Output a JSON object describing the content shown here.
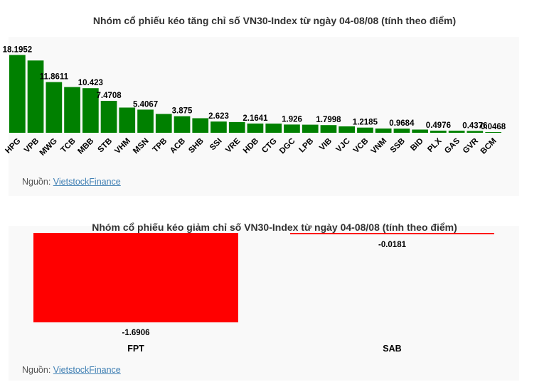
{
  "charts": [
    {
      "title": "Nhóm cổ phiếu kéo tăng chỉ số VN30-Index từ ngày 04-08/08 (tính theo điểm)",
      "source_label": "Nguồn:",
      "source_link": "VietstockFinance"
    },
    {
      "title": "Nhóm cổ phiếu kéo giảm chỉ số VN30-Index từ ngày 04-08/08 (tính theo điểm)",
      "source_label": "Nguồn:",
      "source_link": "VietstockFinance"
    }
  ],
  "colors": {
    "positive": "#008000",
    "negative": "#ff0000"
  },
  "chart_data": [
    {
      "type": "bar",
      "title": "Nhóm cổ phiếu kéo tăng chỉ số VN30-Index từ ngày 04-08/08 (tính theo điểm)",
      "categories": [
        "HPG",
        "VPB",
        "MWG",
        "TCB",
        "MBB",
        "STB",
        "VHM",
        "MSN",
        "TPB",
        "ACB",
        "SHB",
        "SSI",
        "VRE",
        "HDB",
        "CTG",
        "DGC",
        "LPB",
        "VIB",
        "VJC",
        "VCB",
        "VNM",
        "SSB",
        "BID",
        "PLX",
        "GAS",
        "GVR",
        "BCM"
      ],
      "values": [
        18.1952,
        16.9,
        11.8611,
        10.7,
        10.423,
        7.4708,
        5.9,
        5.4067,
        4.4,
        3.875,
        3.4,
        2.623,
        2.5,
        2.1641,
        2.15,
        1.926,
        1.9,
        1.7998,
        1.5,
        1.2185,
        1.0,
        0.9684,
        0.75,
        0.4976,
        0.48,
        0.4376,
        0.0468
      ],
      "data_labels": [
        "18.1952",
        "",
        "11.8611",
        "",
        "10.423",
        "7.4708",
        "",
        "5.4067",
        "",
        "3.875",
        "",
        "2.623",
        "",
        "2.1641",
        "",
        "1.926",
        "",
        "1.7998",
        "",
        "1.2185",
        "",
        "0.9684",
        "",
        "0.4976",
        "",
        "0.4376",
        "0.0468"
      ],
      "ylim": [
        0,
        18.6
      ],
      "grid": false,
      "legend": "none"
    },
    {
      "type": "bar",
      "title": "Nhóm cổ phiếu kéo giảm chỉ số VN30-Index từ ngày 04-08/08 (tính theo điểm)",
      "categories": [
        "FPT",
        "SAB"
      ],
      "values": [
        -1.6906,
        -0.0181
      ],
      "data_labels": [
        "-1.6906",
        "-0.0181"
      ],
      "ylim": [
        -1.69,
        0
      ],
      "grid": false,
      "legend": "none"
    }
  ]
}
